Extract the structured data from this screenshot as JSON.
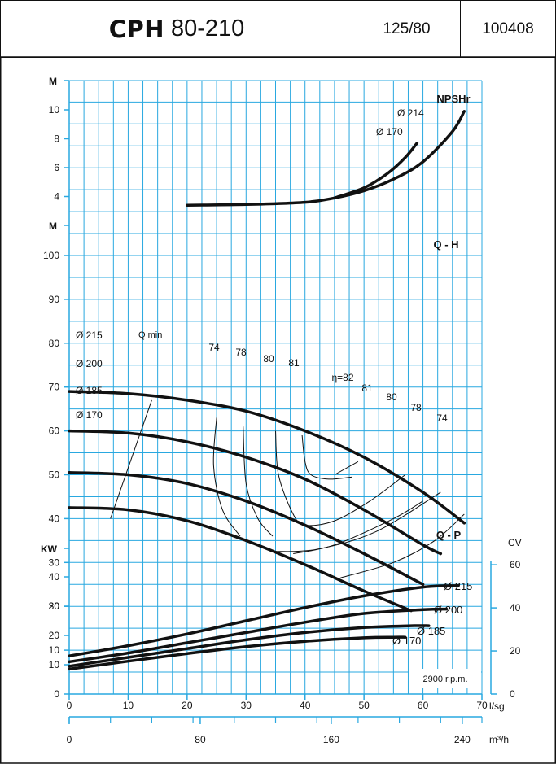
{
  "header": {
    "model_prefix": "CPH",
    "model_number": "80-210",
    "dn": "125/80",
    "code": "100408"
  },
  "colors": {
    "grid": "#29a8e0",
    "curves": "#111111",
    "frame": "#111111"
  },
  "chart_data": {
    "type": "line",
    "x_axis": {
      "label": "l/sg",
      "range": [
        0,
        70
      ],
      "ticks": [
        0,
        10,
        20,
        30,
        40,
        50,
        60,
        70
      ]
    },
    "x_axis_secondary": {
      "label": "m³/h",
      "ticks": [
        0,
        80,
        160,
        240
      ]
    },
    "rpm_label": "2900 r.p.m.",
    "npshr": {
      "title": "NPSHr",
      "y_label": "M",
      "y_range": [
        2,
        11
      ],
      "y_ticks": [
        4,
        6,
        8,
        10
      ],
      "series": [
        {
          "name": "Ø 214",
          "x": [
            20,
            30,
            40,
            45,
            50,
            55,
            60,
            65,
            67
          ],
          "y": [
            3.4,
            3.45,
            3.6,
            3.9,
            4.4,
            5.2,
            6.4,
            8.5,
            9.9
          ]
        },
        {
          "name": "Ø 170",
          "x": [
            45,
            50,
            54,
            57,
            59
          ],
          "y": [
            3.9,
            4.6,
            5.6,
            6.7,
            7.7
          ]
        }
      ]
    },
    "qh": {
      "title": "Q - H",
      "y_label": "M",
      "y_range": [
        0,
        110
      ],
      "y_ticks": [
        10,
        20,
        30,
        40,
        50,
        60,
        70,
        80,
        90,
        100
      ],
      "series": [
        {
          "name": "Ø 215",
          "x": [
            0,
            10,
            20,
            30,
            40,
            50,
            60,
            67
          ],
          "y": [
            69,
            68.5,
            67,
            64.5,
            60,
            54,
            46,
            39
          ]
        },
        {
          "name": "Ø 200",
          "x": [
            0,
            10,
            20,
            30,
            40,
            50,
            60,
            63
          ],
          "y": [
            60,
            59.5,
            57.5,
            54,
            49,
            42,
            34,
            32
          ]
        },
        {
          "name": "Ø 185",
          "x": [
            0,
            10,
            20,
            30,
            40,
            50,
            60
          ],
          "y": [
            50.5,
            50,
            48,
            44,
            38.5,
            32,
            25
          ]
        },
        {
          "name": "Ø 170",
          "x": [
            0,
            10,
            20,
            30,
            40,
            50,
            58
          ],
          "y": [
            42.5,
            42,
            39.5,
            35,
            29.5,
            23.5,
            19
          ]
        }
      ],
      "q_min_label": "Q min",
      "q_min_line": {
        "x": [
          7,
          14
        ],
        "y": [
          40,
          67
        ]
      },
      "efficiency_labels": [
        "74",
        "78",
        "80",
        "81",
        "82",
        "81",
        "80",
        "78",
        "74"
      ],
      "efficiency_prefix": "η=",
      "efficiency_lines": [
        {
          "x": [
            25,
            24.5,
            26,
            29
          ],
          "y": [
            63,
            52,
            42,
            36
          ]
        },
        {
          "x": [
            29.5,
            30,
            32,
            34.5
          ],
          "y": [
            61,
            48,
            40,
            36
          ]
        },
        {
          "x": [
            35,
            35.5,
            38,
            40,
            45,
            51,
            57
          ],
          "y": [
            60,
            50,
            41,
            38.5,
            39.5,
            44,
            50
          ]
        },
        {
          "x": [
            39.5,
            40,
            41,
            44,
            48
          ],
          "y": [
            59,
            53,
            50,
            49,
            49.5
          ]
        },
        {
          "x": [
            38,
            45,
            55,
            60
          ],
          "y": [
            32,
            34,
            40,
            44
          ]
        },
        {
          "x": [
            35,
            42,
            52,
            63
          ],
          "y": [
            32.5,
            33,
            37,
            46
          ]
        },
        {
          "x": [
            46,
            55,
            62,
            67
          ],
          "y": [
            26.5,
            30,
            35,
            41
          ]
        }
      ],
      "eta_pointer": {
        "x": [
          45,
          49
        ],
        "y": [
          50,
          53
        ]
      }
    },
    "qp": {
      "title": "Q - P",
      "y_label": "KW",
      "y_range": [
        0,
        45
      ],
      "y_ticks": [
        0,
        10,
        20,
        30,
        40
      ],
      "secondary_y_label": "CV",
      "secondary_y_ticks": [
        0,
        20,
        40,
        60
      ],
      "series": [
        {
          "name": "Ø 215",
          "x": [
            0,
            10,
            20,
            30,
            40,
            50,
            60,
            66
          ],
          "y": [
            13,
            16.5,
            20.5,
            25,
            29.5,
            33.5,
            36.5,
            37
          ]
        },
        {
          "name": "Ø 200",
          "x": [
            0,
            10,
            20,
            30,
            40,
            50,
            60,
            64
          ],
          "y": [
            11,
            14,
            17.5,
            21,
            24.5,
            27.5,
            28.8,
            29
          ]
        },
        {
          "name": "Ø 185",
          "x": [
            0,
            10,
            20,
            30,
            40,
            50,
            58,
            61
          ],
          "y": [
            9.5,
            12.5,
            15.5,
            18.5,
            21,
            22.7,
            23.3,
            23.3
          ]
        },
        {
          "name": "Ø 170",
          "x": [
            0,
            10,
            20,
            30,
            40,
            50,
            55,
            57
          ],
          "y": [
            8.5,
            11.2,
            13.8,
            16.2,
            18,
            19.2,
            19.4,
            19.4
          ]
        }
      ]
    }
  }
}
